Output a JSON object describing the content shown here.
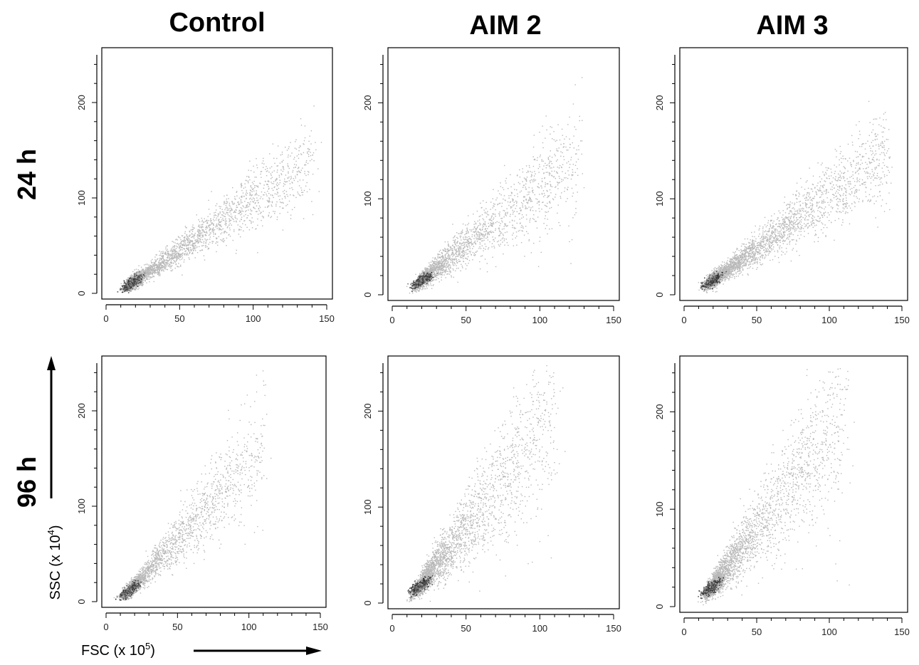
{
  "figure": {
    "column_titles": [
      "Control",
      "AIM 2",
      "AIM 3"
    ],
    "row_titles": [
      "24 h",
      "96 h"
    ],
    "x_axis_label": {
      "main": "FSC (x 10",
      "exp": "5",
      "tail": ")"
    },
    "y_axis_label": {
      "main": "SSC (x 10",
      "exp": "4",
      "tail": ")"
    }
  },
  "chart_data": [
    {
      "type": "scatter",
      "name": "Control",
      "time": "24 h",
      "xlim": [
        0,
        150
      ],
      "ylim": [
        0,
        250
      ],
      "xticks": [
        0,
        50,
        100,
        150
      ],
      "yticks": [
        0,
        100,
        200
      ],
      "point_color": "#b8b8b8",
      "dense_color": "#111111",
      "core": [
        17,
        11
      ],
      "slope": 1.05,
      "spread": 0.16,
      "extent": 140,
      "n": 2600
    },
    {
      "type": "scatter",
      "name": "AIM 2",
      "time": "24 h",
      "xlim": [
        0,
        150
      ],
      "ylim": [
        0,
        250
      ],
      "xticks": [
        0,
        50,
        100,
        150
      ],
      "yticks": [
        0,
        100,
        200
      ],
      "point_color": "#b8b8b8",
      "dense_color": "#111111",
      "core": [
        19,
        15
      ],
      "slope": 1.2,
      "spread": 0.22,
      "extent": 125,
      "n": 2200
    },
    {
      "type": "scatter",
      "name": "AIM 3",
      "time": "24 h",
      "xlim": [
        0,
        150
      ],
      "ylim": [
        0,
        250
      ],
      "xticks": [
        0,
        50,
        100,
        150
      ],
      "yticks": [
        0,
        100,
        200
      ],
      "point_color": "#b8b8b8",
      "dense_color": "#111111",
      "core": [
        19,
        15
      ],
      "slope": 1.1,
      "spread": 0.18,
      "extent": 140,
      "n": 3000
    },
    {
      "type": "scatter",
      "name": "Control",
      "time": "96 h",
      "xlim": [
        0,
        150
      ],
      "ylim": [
        0,
        250
      ],
      "xticks": [
        0,
        50,
        100,
        150
      ],
      "yticks": [
        0,
        100,
        200
      ],
      "point_color": "#b8b8b8",
      "dense_color": "#111111",
      "core": [
        16,
        12
      ],
      "slope": 1.6,
      "spread": 0.2,
      "extent": 110,
      "n": 2000
    },
    {
      "type": "scatter",
      "name": "AIM 2",
      "time": "96 h",
      "xlim": [
        0,
        150
      ],
      "ylim": [
        0,
        250
      ],
      "xticks": [
        0,
        50,
        100,
        150
      ],
      "yticks": [
        0,
        100,
        200
      ],
      "point_color": "#b8b8b8",
      "dense_color": "#111111",
      "core": [
        18,
        18
      ],
      "slope": 1.9,
      "spread": 0.26,
      "extent": 110,
      "n": 2600
    },
    {
      "type": "scatter",
      "name": "AIM 3",
      "time": "96 h",
      "xlim": [
        0,
        150
      ],
      "ylim": [
        0,
        250
      ],
      "xticks": [
        0,
        50,
        100,
        150
      ],
      "yticks": [
        0,
        100,
        200
      ],
      "point_color": "#b8b8b8",
      "dense_color": "#111111",
      "core": [
        18,
        20
      ],
      "slope": 1.9,
      "spread": 0.24,
      "extent": 110,
      "n": 2600
    }
  ]
}
